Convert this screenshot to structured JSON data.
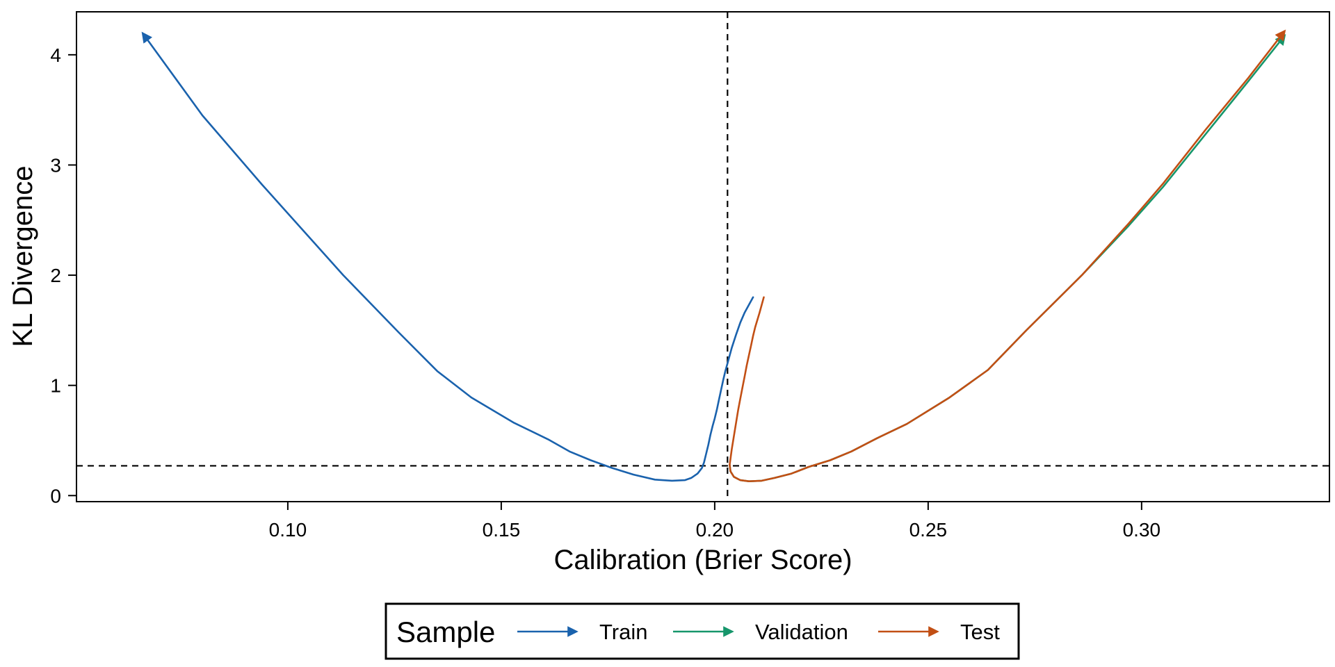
{
  "chart_data": {
    "type": "line",
    "title": "",
    "xlabel": "Calibration (Brier Score)",
    "ylabel": "KL Divergence",
    "xlim": [
      0.0505,
      0.344
    ],
    "ylim": [
      -0.055,
      4.39
    ],
    "x_ticks": [
      0.1,
      0.15,
      0.2,
      0.25,
      0.3
    ],
    "x_tick_labels": [
      "0.10",
      "0.15",
      "0.20",
      "0.25",
      "0.30"
    ],
    "y_ticks": [
      0,
      1,
      2,
      3,
      4
    ],
    "y_tick_labels": [
      "0",
      "1",
      "2",
      "3",
      "4"
    ],
    "grid": false,
    "legend": {
      "title": "Sample",
      "placement": "bottom",
      "entries": [
        "Train",
        "Validation",
        "Test"
      ]
    },
    "reference_lines": {
      "vertical_x": 0.203,
      "horizontal_y": 0.27,
      "style": "dashed"
    },
    "series": [
      {
        "name": "Train",
        "color": "#1a62ad",
        "arrow_end": "start",
        "x": [
          0.0665,
          0.08,
          0.094,
          0.113,
          0.126,
          0.135,
          0.143,
          0.153,
          0.161,
          0.166,
          0.171,
          0.176,
          0.181,
          0.186,
          0.19,
          0.193,
          0.1945,
          0.196,
          0.197,
          0.1975,
          0.198,
          0.1985,
          0.199,
          0.1995,
          0.2,
          0.2005,
          0.201,
          0.2015,
          0.202,
          0.2025,
          0.203,
          0.204,
          0.205,
          0.206,
          0.207,
          0.209
        ],
        "y": [
          4.17,
          3.45,
          2.82,
          2.0,
          1.48,
          1.13,
          0.89,
          0.66,
          0.51,
          0.4,
          0.32,
          0.25,
          0.19,
          0.145,
          0.135,
          0.14,
          0.16,
          0.2,
          0.25,
          0.3,
          0.38,
          0.46,
          0.55,
          0.63,
          0.7,
          0.78,
          0.87,
          0.96,
          1.05,
          1.13,
          1.2,
          1.34,
          1.46,
          1.57,
          1.66,
          1.8
        ]
      },
      {
        "name": "Validation",
        "color": "#16966b",
        "arrow_end": "end",
        "x": [
          0.2035,
          0.2037,
          0.2045,
          0.206,
          0.208,
          0.211,
          0.214,
          0.218,
          0.222,
          0.227,
          0.232,
          0.238,
          0.245,
          0.255,
          0.264,
          0.273,
          0.286,
          0.297,
          0.305,
          0.315,
          0.325,
          0.333
        ],
        "y": [
          0.28,
          0.22,
          0.17,
          0.14,
          0.13,
          0.135,
          0.16,
          0.2,
          0.26,
          0.32,
          0.4,
          0.52,
          0.65,
          0.89,
          1.14,
          1.5,
          2.0,
          2.45,
          2.8,
          3.28,
          3.76,
          4.15
        ]
      },
      {
        "name": "Test",
        "color": "#c24f14",
        "arrow_end": "end",
        "x": [
          0.2035,
          0.2037,
          0.2045,
          0.206,
          0.208,
          0.211,
          0.214,
          0.218,
          0.222,
          0.227,
          0.232,
          0.238,
          0.245,
          0.255,
          0.264,
          0.273,
          0.286,
          0.297,
          0.305,
          0.315,
          0.325,
          0.333
        ],
        "y": [
          0.28,
          0.22,
          0.17,
          0.14,
          0.13,
          0.135,
          0.16,
          0.2,
          0.26,
          0.32,
          0.4,
          0.52,
          0.65,
          0.89,
          1.14,
          1.5,
          2.0,
          2.47,
          2.83,
          3.32,
          3.79,
          4.19
        ]
      },
      {
        "name": "",
        "color": "#c24f14",
        "arrow_end": "none",
        "x": [
          0.2035,
          0.204,
          0.2045,
          0.205,
          0.2055,
          0.206,
          0.2065,
          0.207,
          0.2075,
          0.208,
          0.2085,
          0.209,
          0.2095,
          0.2105,
          0.2115
        ],
        "y": [
          0.28,
          0.42,
          0.54,
          0.66,
          0.78,
          0.88,
          0.98,
          1.08,
          1.18,
          1.27,
          1.36,
          1.45,
          1.53,
          1.66,
          1.8
        ]
      }
    ]
  }
}
